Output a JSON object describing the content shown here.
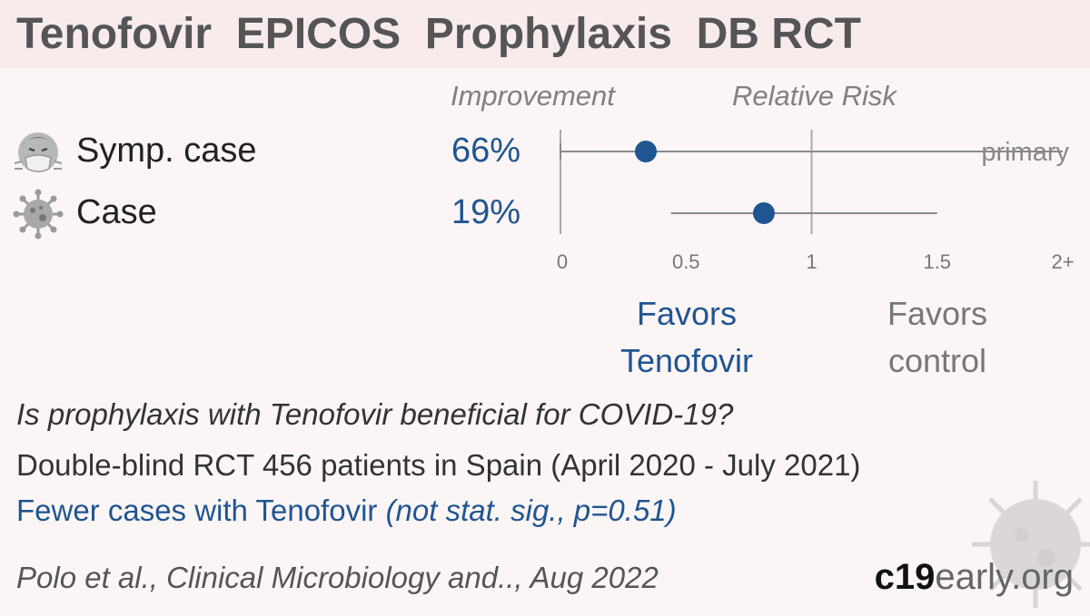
{
  "header": {
    "title": "Tenofovir  EPICOS  Prophylaxis  DB RCT"
  },
  "columns": {
    "improvement": "Improvement",
    "relative_risk": "Relative Risk"
  },
  "chart_data": {
    "type": "forest",
    "x_axis": {
      "ticks": [
        0,
        0.5,
        1,
        1.5,
        2
      ],
      "tick_labels": [
        "0",
        "0.5",
        "1",
        "1.5",
        "2+"
      ],
      "reference_line": 1,
      "xlim": [
        0,
        2
      ]
    },
    "rows": [
      {
        "label": "Symp. case",
        "icon": "sneezing-face-icon",
        "improvement": "66%",
        "rr": 0.34,
        "ci": [
          0,
          2
        ],
        "annotation": "primary"
      },
      {
        "label": "Case",
        "icon": "virus-icon",
        "improvement": "19%",
        "rr": 0.81,
        "ci": [
          0.44,
          1.5
        ],
        "annotation": ""
      }
    ],
    "favors_left": [
      "Favors",
      "Tenofovir"
    ],
    "favors_right": [
      "Favors",
      "control"
    ]
  },
  "summary": {
    "question": "Is prophylaxis with Tenofovir beneficial for COVID-19?",
    "design": "Double-blind RCT 456 patients in Spain (April 2020 - July 2021)",
    "result_main": "Fewer cases with Tenofovir ",
    "result_paren": "(not stat. sig., p=0.51)",
    "citation": "Polo et al., Clinical Microbiology and.., Aug 2022"
  },
  "brand": {
    "part1": "c19",
    "part2": "early.org"
  },
  "colors": {
    "accent": "#1f5591",
    "line": "#8a8a8a",
    "background": "#fcf5f5",
    "title_bg": "#f8ebeb"
  }
}
